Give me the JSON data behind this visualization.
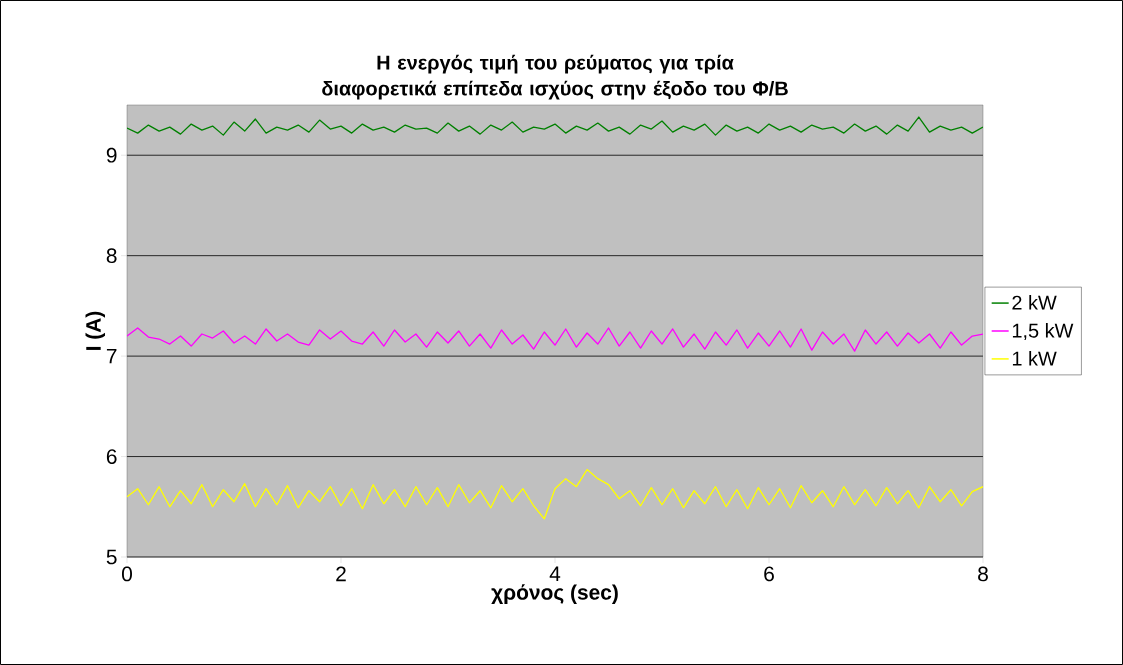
{
  "chart_data": {
    "type": "line",
    "title": "Η ενεργός τιμή του ρεύματος για τρία διαφορετικά επίπεδα ισχύος στην έξοδο του Φ/Β",
    "xlabel": "χρόνος (sec)",
    "ylabel": "I (A)",
    "x": [
      0,
      0.1,
      0.2,
      0.3,
      0.4,
      0.5,
      0.6,
      0.7,
      0.8,
      0.9,
      1,
      1.1,
      1.2,
      1.3,
      1.4,
      1.5,
      1.6,
      1.7,
      1.8,
      1.9,
      2,
      2.1,
      2.2,
      2.3,
      2.4,
      2.5,
      2.6,
      2.7,
      2.8,
      2.9,
      3,
      3.1,
      3.2,
      3.3,
      3.4,
      3.5,
      3.6,
      3.7,
      3.8,
      3.9,
      4,
      4.1,
      4.2,
      4.3,
      4.4,
      4.5,
      4.6,
      4.7,
      4.8,
      4.9,
      5,
      5.1,
      5.2,
      5.3,
      5.4,
      5.5,
      5.6,
      5.7,
      5.8,
      5.9,
      6,
      6.1,
      6.2,
      6.3,
      6.4,
      6.5,
      6.6,
      6.7,
      6.8,
      6.9,
      7,
      7.1,
      7.2,
      7.3,
      7.4,
      7.5,
      7.6,
      7.7,
      7.8,
      7.9,
      8
    ],
    "series": [
      {
        "name": "2 kW",
        "color": "#008000",
        "values": [
          9.27,
          9.22,
          9.3,
          9.24,
          9.28,
          9.21,
          9.31,
          9.25,
          9.29,
          9.2,
          9.33,
          9.24,
          9.36,
          9.22,
          9.28,
          9.25,
          9.3,
          9.23,
          9.35,
          9.26,
          9.29,
          9.22,
          9.31,
          9.25,
          9.28,
          9.23,
          9.3,
          9.26,
          9.27,
          9.22,
          9.32,
          9.24,
          9.29,
          9.21,
          9.3,
          9.25,
          9.33,
          9.23,
          9.28,
          9.26,
          9.31,
          9.22,
          9.29,
          9.25,
          9.32,
          9.24,
          9.28,
          9.21,
          9.3,
          9.26,
          9.34,
          9.23,
          9.29,
          9.25,
          9.31,
          9.2,
          9.3,
          9.24,
          9.28,
          9.22,
          9.31,
          9.25,
          9.29,
          9.23,
          9.3,
          9.26,
          9.28,
          9.22,
          9.31,
          9.24,
          9.29,
          9.21,
          9.3,
          9.24,
          9.38,
          9.23,
          9.29,
          9.25,
          9.28,
          9.22,
          9.28
        ]
      },
      {
        "name": "1,5 kW",
        "color": "#ff00ff",
        "values": [
          7.2,
          7.28,
          7.19,
          7.17,
          7.12,
          7.2,
          7.1,
          7.22,
          7.18,
          7.25,
          7.13,
          7.2,
          7.12,
          7.27,
          7.15,
          7.22,
          7.14,
          7.11,
          7.26,
          7.17,
          7.25,
          7.15,
          7.12,
          7.24,
          7.1,
          7.26,
          7.14,
          7.22,
          7.09,
          7.24,
          7.13,
          7.25,
          7.1,
          7.22,
          7.08,
          7.26,
          7.12,
          7.21,
          7.07,
          7.24,
          7.11,
          7.27,
          7.09,
          7.23,
          7.12,
          7.28,
          7.1,
          7.24,
          7.08,
          7.25,
          7.12,
          7.27,
          7.09,
          7.22,
          7.07,
          7.24,
          7.11,
          7.26,
          7.08,
          7.23,
          7.1,
          7.25,
          7.09,
          7.27,
          7.06,
          7.24,
          7.12,
          7.22,
          7.05,
          7.26,
          7.12,
          7.24,
          7.1,
          7.23,
          7.13,
          7.22,
          7.08,
          7.24,
          7.11,
          7.2,
          7.22
        ]
      },
      {
        "name": "1 kW",
        "color": "#ffff00",
        "values": [
          5.6,
          5.68,
          5.52,
          5.7,
          5.5,
          5.66,
          5.53,
          5.72,
          5.5,
          5.67,
          5.55,
          5.73,
          5.5,
          5.68,
          5.52,
          5.71,
          5.49,
          5.66,
          5.55,
          5.7,
          5.51,
          5.68,
          5.48,
          5.72,
          5.53,
          5.67,
          5.5,
          5.7,
          5.52,
          5.69,
          5.5,
          5.72,
          5.54,
          5.66,
          5.49,
          5.71,
          5.55,
          5.68,
          5.51,
          5.38,
          5.68,
          5.78,
          5.7,
          5.87,
          5.78,
          5.72,
          5.58,
          5.66,
          5.51,
          5.69,
          5.52,
          5.68,
          5.49,
          5.66,
          5.53,
          5.7,
          5.5,
          5.67,
          5.48,
          5.69,
          5.52,
          5.68,
          5.49,
          5.71,
          5.54,
          5.66,
          5.5,
          5.7,
          5.52,
          5.67,
          5.51,
          5.69,
          5.53,
          5.66,
          5.49,
          5.7,
          5.55,
          5.67,
          5.51,
          5.65,
          5.7
        ]
      }
    ],
    "xlim": [
      0,
      8
    ],
    "ylim": [
      5,
      9.5
    ],
    "xticks": [
      0,
      2,
      4,
      6,
      8
    ],
    "yticks": [
      5,
      6,
      7,
      8,
      9
    ],
    "grid": "y",
    "legend": "right"
  }
}
